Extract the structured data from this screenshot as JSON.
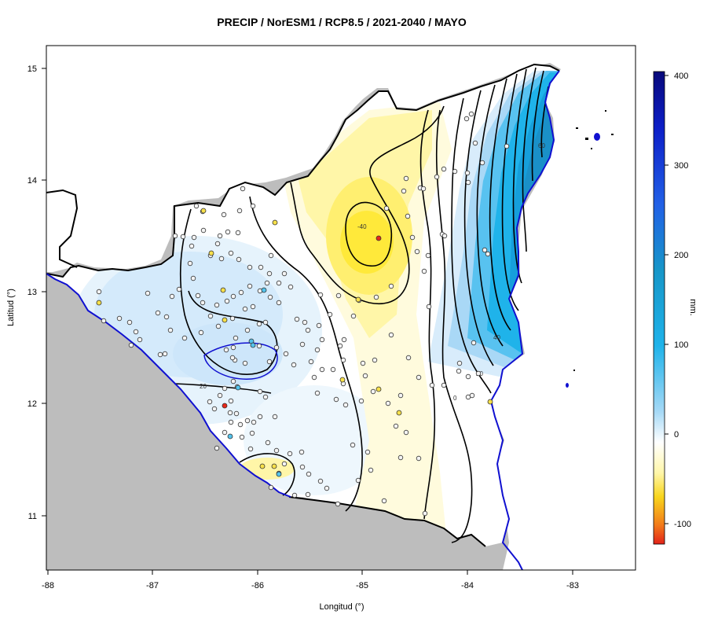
{
  "title": "PRECIP / NorESM1 / RCP8.5 / 2021-2040 / MAYO",
  "x_axis": {
    "label": "Longitud (°)",
    "ticks": [
      "-88",
      "-87",
      "-86",
      "-85",
      "-84",
      "-83"
    ]
  },
  "y_axis": {
    "label": "Latitud (°)",
    "ticks": [
      "15",
      "14",
      "13",
      "12",
      "11"
    ]
  },
  "colorbar": {
    "label": "mm.",
    "ticks": [
      "400",
      "300",
      "200",
      "100",
      "0",
      "-100"
    ],
    "range": [
      -120,
      400
    ],
    "colors": {
      "dry_extreme": "#e8281a",
      "dry": "#f7d51c",
      "light_dry": "#fff9c8",
      "neutral": "#ffffff",
      "light_wet": "#d8ecfb",
      "wet": "#1bb0ea",
      "very_wet": "#1a5ae0",
      "extreme_wet": "#0b0f7a"
    }
  },
  "contour_labels": [
    "-40",
    "0",
    "20",
    "40",
    "60"
  ],
  "colors": {
    "land_outside": "#bdbdbd",
    "coastline": "#1010d0",
    "border": "#000000"
  },
  "stations": {
    "yellow_count": 13,
    "red_count": 2,
    "blue_count": 6
  }
}
